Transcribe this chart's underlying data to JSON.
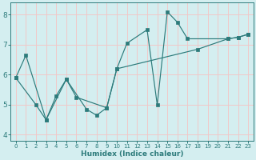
{
  "xlabel": "Humidex (Indice chaleur)",
  "bg_color": "#d4eef0",
  "grid_color": "#f0c8c8",
  "line_color": "#2d7b7b",
  "xlim": [
    -0.5,
    23.5
  ],
  "ylim": [
    3.8,
    8.4
  ],
  "xticks": [
    0,
    1,
    2,
    3,
    4,
    5,
    6,
    7,
    8,
    9,
    10,
    11,
    12,
    13,
    14,
    15,
    16,
    17,
    18,
    19,
    20,
    21,
    22,
    23
  ],
  "yticks": [
    4,
    5,
    6,
    7,
    8
  ],
  "line1_x": [
    0,
    1,
    3,
    5,
    6,
    9,
    10,
    11,
    13,
    14,
    15,
    16,
    17,
    21,
    22,
    23
  ],
  "line1_y": [
    5.9,
    6.65,
    4.5,
    5.85,
    5.25,
    4.9,
    6.2,
    7.05,
    7.5,
    5.0,
    8.1,
    7.75,
    7.2,
    7.2,
    7.25,
    7.35
  ],
  "line2_x": [
    0,
    2,
    3,
    4,
    5,
    7,
    8,
    9,
    10,
    18,
    21,
    22,
    23
  ],
  "line2_y": [
    5.9,
    5.0,
    4.5,
    5.3,
    5.85,
    4.85,
    4.65,
    4.9,
    6.2,
    6.85,
    7.2,
    7.25,
    7.35
  ]
}
